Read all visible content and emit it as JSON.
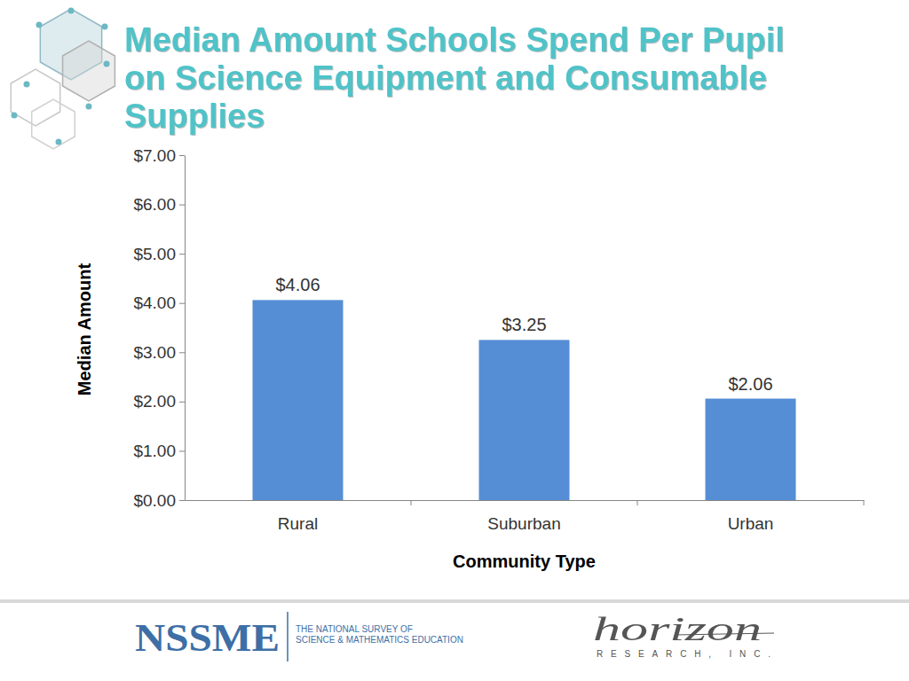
{
  "chart_data": {
    "type": "bar",
    "title": "Median Amount Schools Spend Per Pupil on Science Equipment and Consumable Supplies",
    "x_label": "Community Type",
    "y_label": "Median Amount",
    "categories": [
      "Rural",
      "Suburban",
      "Urban"
    ],
    "values": [
      4.06,
      3.25,
      2.06
    ],
    "value_labels": [
      "$4.06",
      "$3.25",
      "$2.06"
    ],
    "data_labels": true,
    "color": "#558ed5",
    "ylim": [
      0,
      7
    ],
    "yticks": [
      {
        "value": 0,
        "label": "$0.00"
      },
      {
        "value": 1,
        "label": "$1.00"
      },
      {
        "value": 2,
        "label": "$2.00"
      },
      {
        "value": 3,
        "label": "$3.00"
      },
      {
        "value": 4,
        "label": "$4.00"
      },
      {
        "value": 5,
        "label": "$5.00"
      },
      {
        "value": 6,
        "label": "$6.00"
      },
      {
        "value": 7,
        "label": "$7.00"
      }
    ],
    "grid": false
  },
  "footer": {
    "left_logo": "NSSME",
    "left_logo_text": [
      "THE NATIONAL SURVEY OF",
      "SCIENCE & MATHEMATICS EDUCATION"
    ],
    "right_logo": "horizon",
    "right_logo_text": "RESEARCH, INC."
  }
}
